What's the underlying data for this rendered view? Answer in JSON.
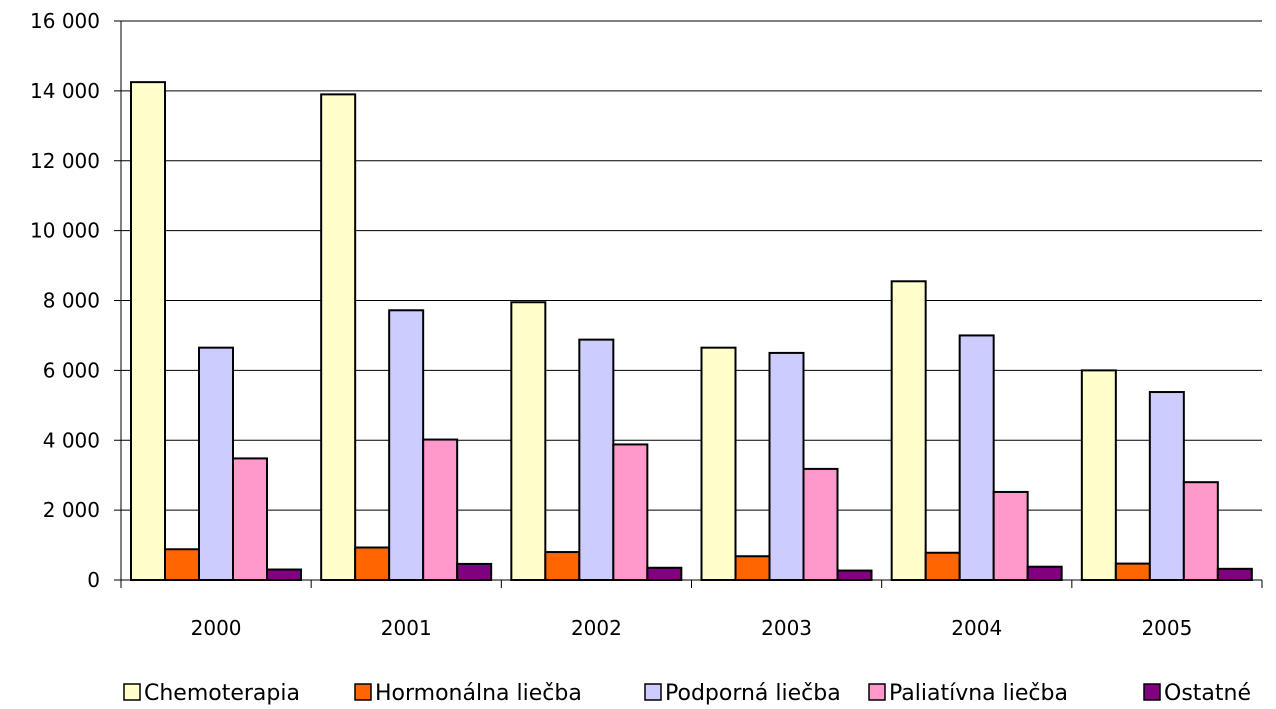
{
  "chart_data": {
    "type": "bar",
    "title": "",
    "xlabel": "",
    "ylabel": "",
    "ylim": [
      0,
      16000
    ],
    "yticks": [
      0,
      2000,
      4000,
      6000,
      8000,
      10000,
      12000,
      14000,
      16000
    ],
    "ytick_labels": [
      "0",
      "2 000",
      "4 000",
      "6 000",
      "8 000",
      "10 000",
      "12 000",
      "14 000",
      "16 000"
    ],
    "grid": "horizontal",
    "legend_position": "bottom",
    "categories": [
      "2000",
      "2001",
      "2002",
      "2003",
      "2004",
      "2005"
    ],
    "series": [
      {
        "name": "Chemoterapia",
        "color": "#ffffcc",
        "values": [
          14250,
          13900,
          7950,
          6650,
          8550,
          6000
        ]
      },
      {
        "name": "Hormonálna liečba",
        "color": "#ff6600",
        "values": [
          880,
          930,
          800,
          680,
          780,
          470
        ]
      },
      {
        "name": "Podporná liečba",
        "color": "#ccccff",
        "values": [
          6650,
          7720,
          6880,
          6500,
          7000,
          5380
        ]
      },
      {
        "name": "Paliatívna liečba",
        "color": "#ff99cc",
        "values": [
          3480,
          4020,
          3880,
          3180,
          2520,
          2800
        ]
      },
      {
        "name": "Ostatné",
        "color": "#800080",
        "values": [
          300,
          460,
          350,
          270,
          380,
          320
        ]
      }
    ]
  }
}
